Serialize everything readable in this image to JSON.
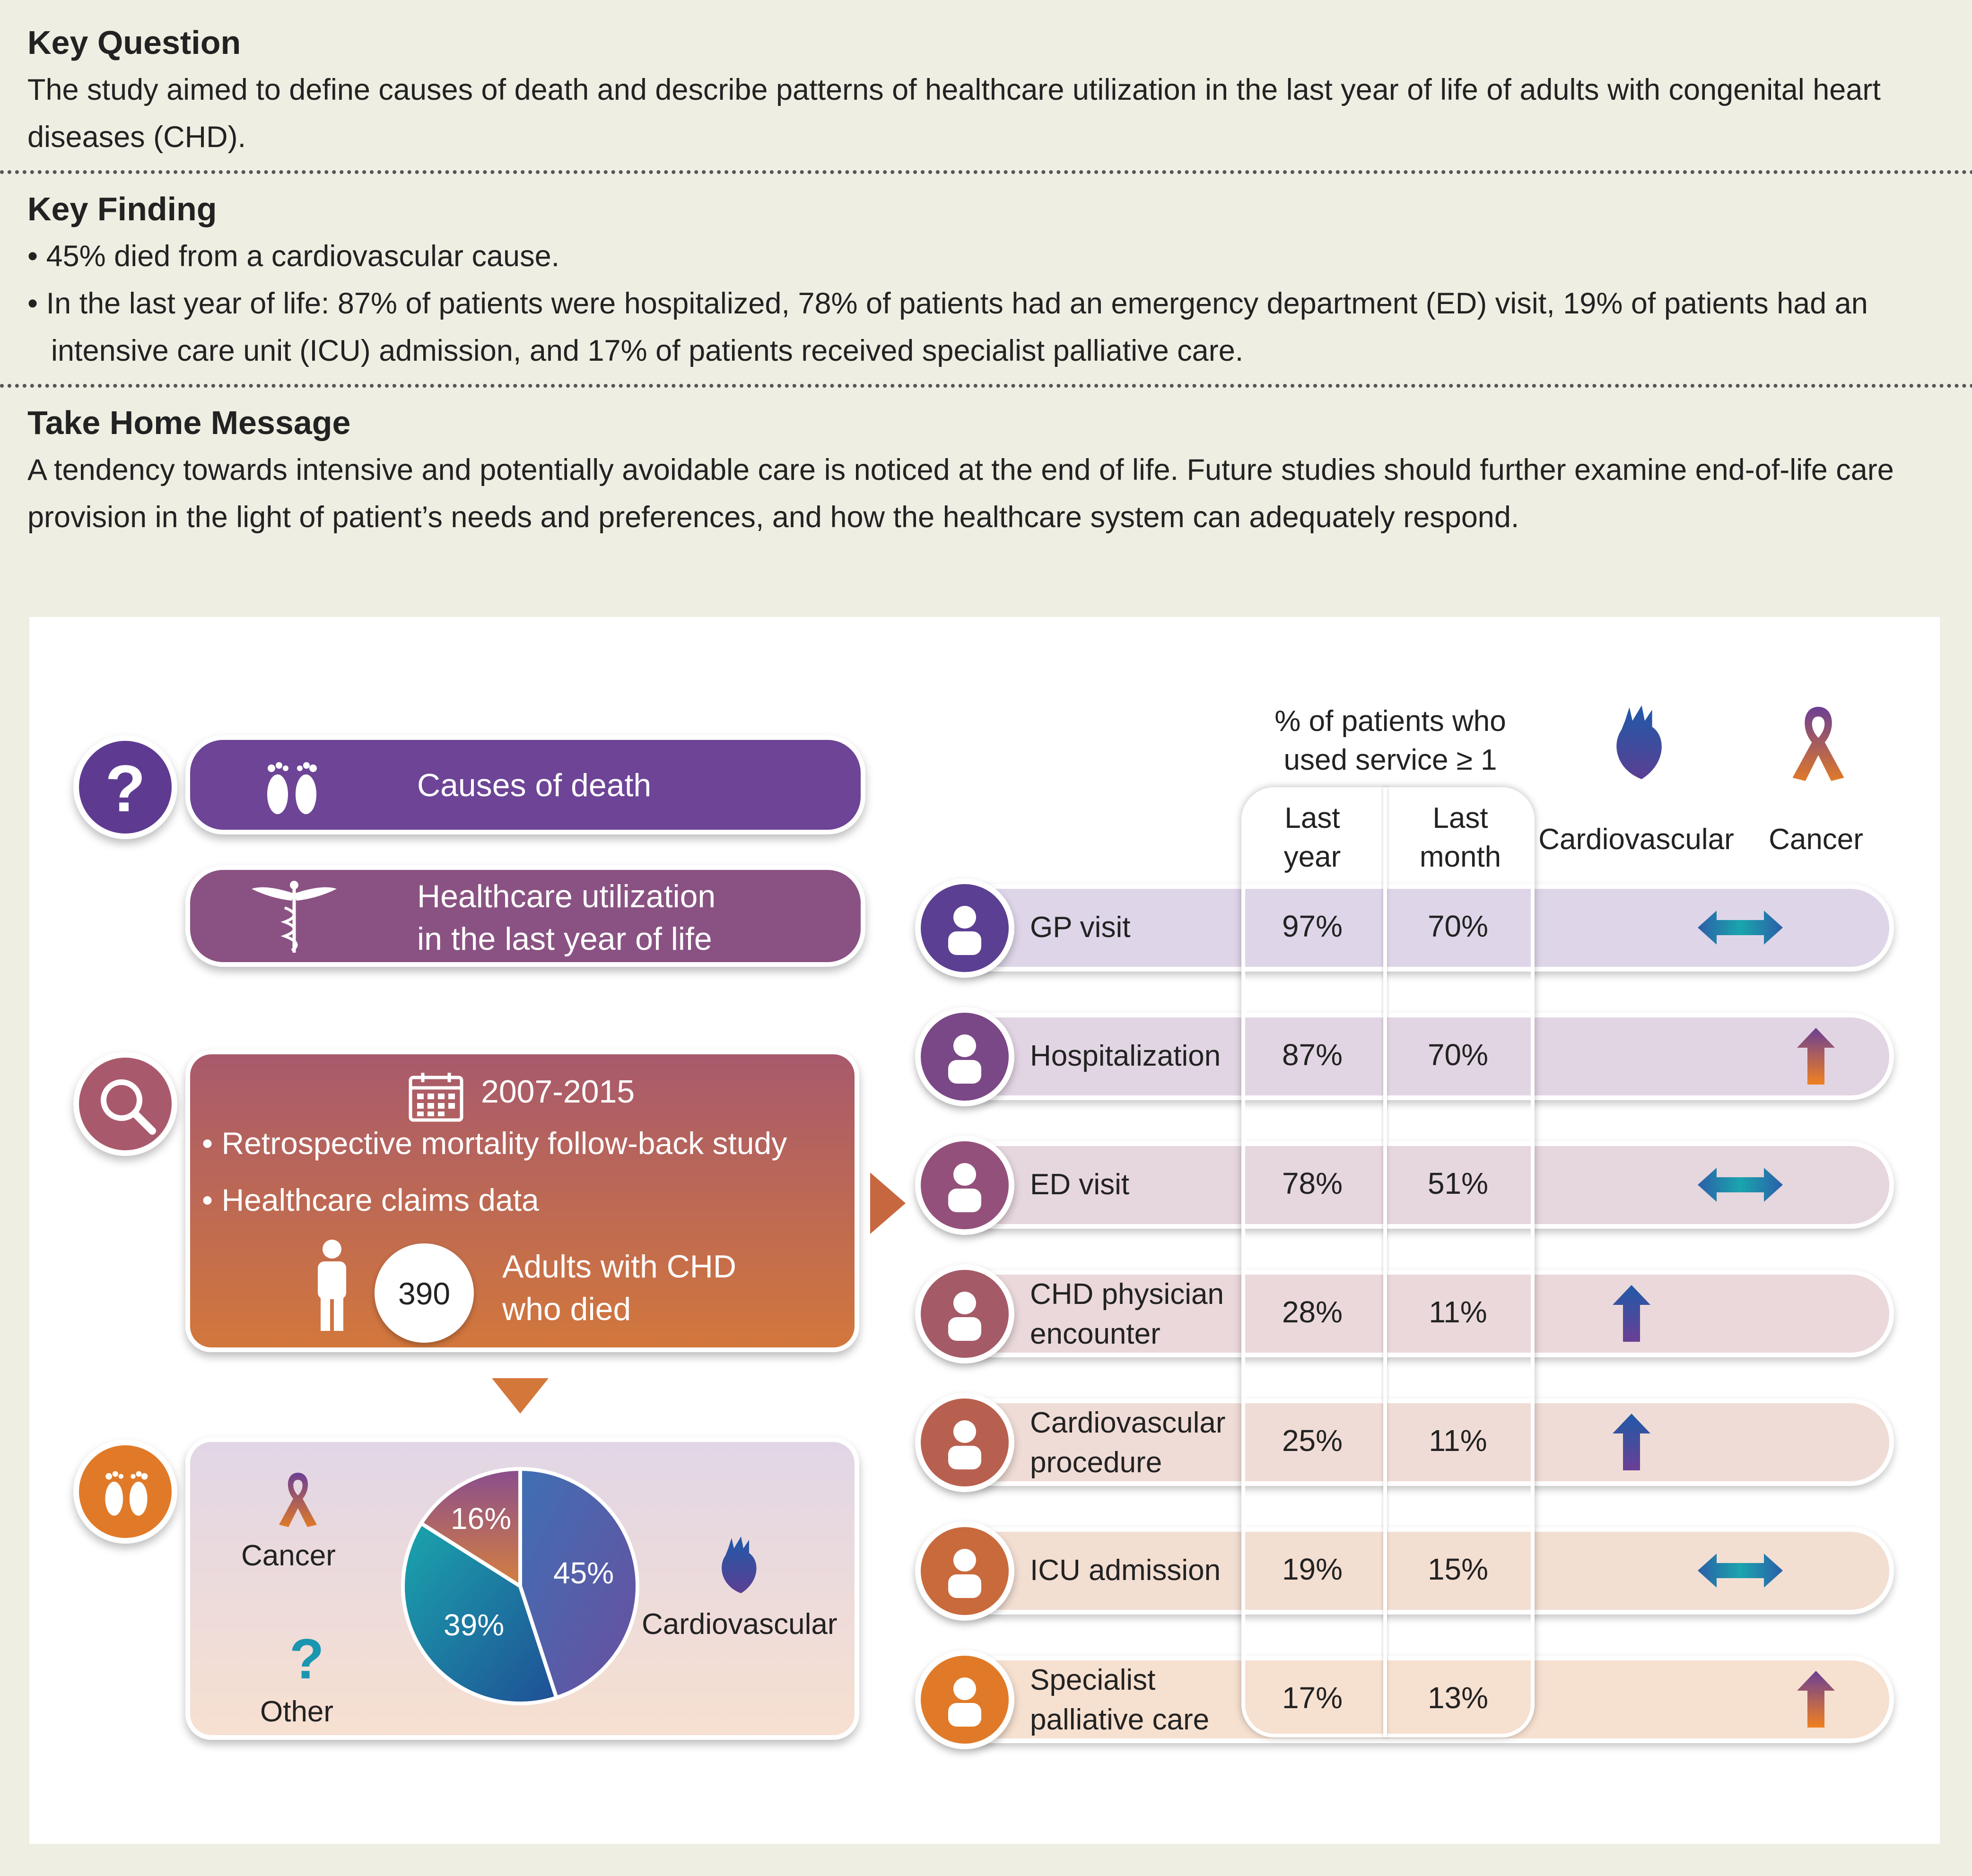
{
  "key_question": {
    "heading": "Key Question",
    "text": "The study aimed to define causes of death and describe patterns of healthcare utilization in the last year of life of adults with congenital heart diseases (CHD)."
  },
  "key_finding": {
    "heading": "Key Finding",
    "bullets": [
      "45% died from a cardiovascular cause.",
      "In the last year of life: 87% of patients were hospitalized, 78% of patients had an emergency department (ED) visit, 19% of patients had an intensive care unit (ICU) admission, and 17% of patients received specialist palliative care."
    ]
  },
  "take_home": {
    "heading": "Take Home Message",
    "text": "A tendency towards intensive and potentially avoidable care is noticed at the end of life. Future studies should further examine end-of-life care provision in the light of patient’s needs and preferences, and how the healthcare system can adequately respond."
  },
  "left": {
    "question_mark": "?",
    "causes_label": "Causes of death",
    "healthcare_label_1": "Healthcare utilization",
    "healthcare_label_2": "in the last year of life",
    "years": "2007-2015",
    "method_1": "• Retrospective mortality follow-back study",
    "method_2": "• Healthcare claims data",
    "count": "390",
    "count_label_1": "Adults with CHD",
    "count_label_2": "who died",
    "pie": {
      "slices": [
        {
          "label": "Cardiovascular",
          "pct": 45,
          "text": "45%",
          "color": "#5a55a6"
        },
        {
          "label": "Other",
          "pct": 39,
          "text": "39%",
          "color": "#1a7fa8"
        },
        {
          "label": "Cancer",
          "pct": 16,
          "text": "16%",
          "color": "#9a5a86"
        }
      ],
      "cancer_label": "Cancer",
      "other_label": "Other",
      "other_mark": "?",
      "cardio_label": "Cardiovascular"
    }
  },
  "table": {
    "header_line1": "% of patients who",
    "header_line2": "used service ≥ 1",
    "col1_a": "Last",
    "col1_b": "year",
    "col2_a": "Last",
    "col2_b": "month",
    "col3": "Cardiovascular",
    "col4": "Cancer",
    "rows": [
      {
        "l1": "GP visit",
        "l2": "",
        "year": "97%",
        "month": "70%",
        "cardio": "",
        "cancer": "equal",
        "color": "#ded6e8",
        "icon_color": "#5b3f93"
      },
      {
        "l1": "Hospitalization",
        "l2": "",
        "year": "87%",
        "month": "70%",
        "cardio": "",
        "cancer": "up",
        "color": "#e2d5e3",
        "icon_color": "#7a4887"
      },
      {
        "l1": "ED visit",
        "l2": "",
        "year": "78%",
        "month": "51%",
        "cardio": "",
        "cancer": "equal",
        "color": "#e6d6de",
        "icon_color": "#93507b"
      },
      {
        "l1": "CHD physician",
        "l2": "encounter",
        "year": "28%",
        "month": "11%",
        "cardio": "up",
        "cancer": "",
        "color": "#ead8da",
        "icon_color": "#a45a67"
      },
      {
        "l1": "Cardiovascular",
        "l2": "procedure",
        "year": "25%",
        "month": "11%",
        "cardio": "up",
        "cancer": "",
        "color": "#f0dcd6",
        "icon_color": "#b8604f"
      },
      {
        "l1": "ICU admission",
        "l2": "",
        "year": "19%",
        "month": "15%",
        "cardio": "",
        "cancer": "equal",
        "color": "#f3ded2",
        "icon_color": "#c96a3c"
      },
      {
        "l1": "Specialist",
        "l2": "palliative care",
        "year": "17%",
        "month": "13%",
        "cardio": "",
        "cancer": "up",
        "color": "#f6e0d0",
        "icon_color": "#e07a28"
      }
    ]
  }
}
